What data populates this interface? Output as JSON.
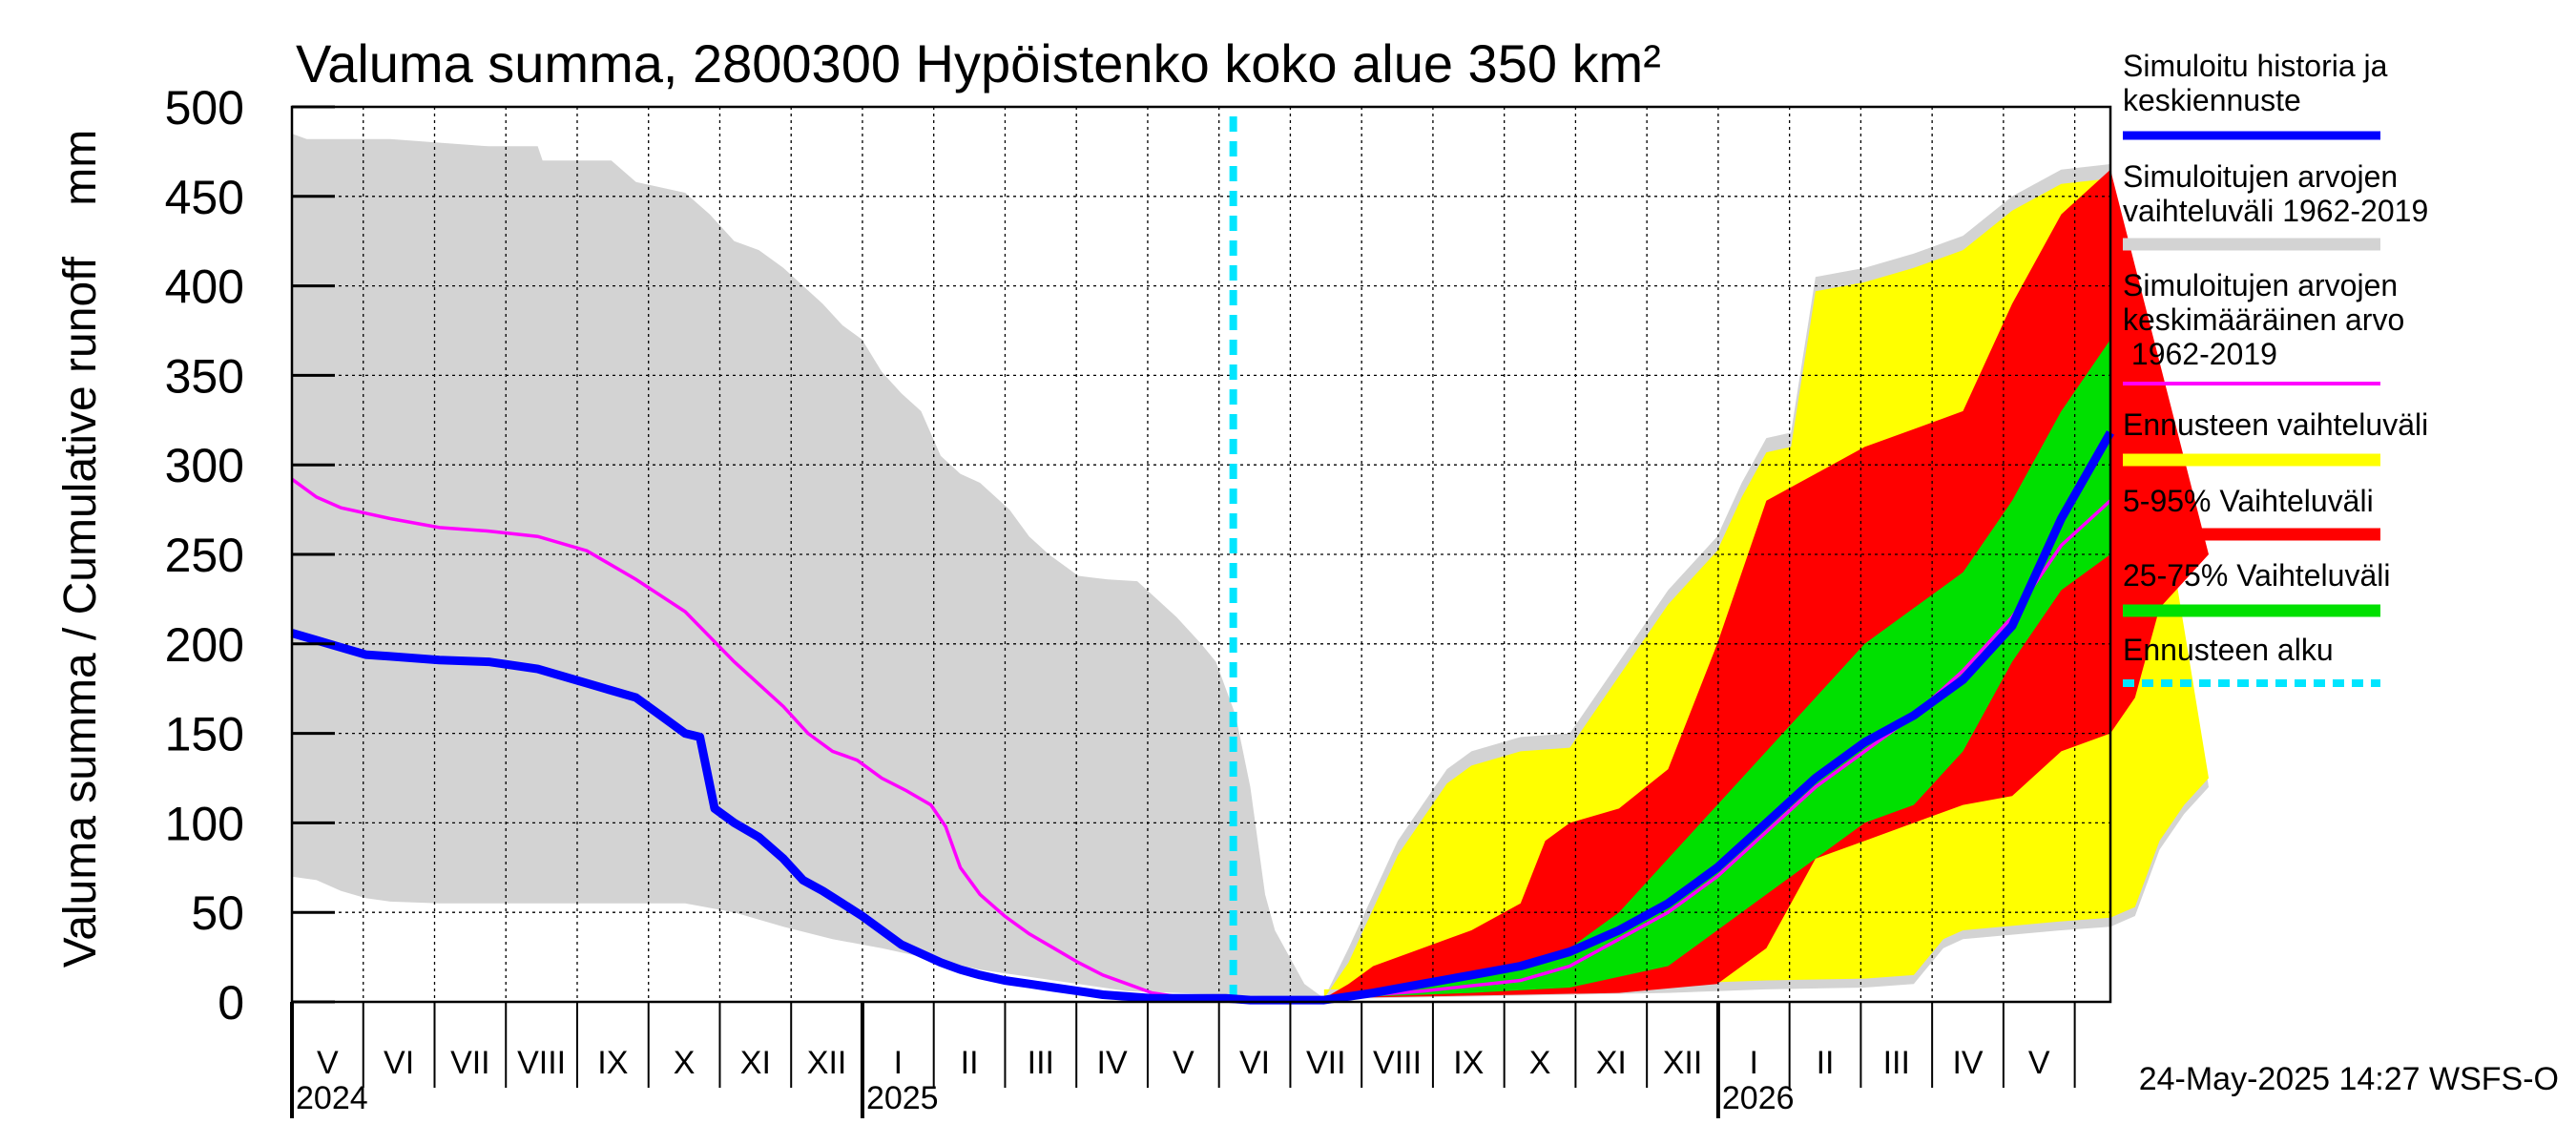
{
  "chart_data": {
    "type": "area",
    "title": "Valuma summa, 2800300 Hypöistenko koko alue 350 km²",
    "ylabel": "Valuma summa / Cumulative runoff    mm",
    "xlabel": "",
    "ylim": [
      0,
      500
    ],
    "xlim_months": [
      0,
      25.5
    ],
    "forecast_start_month": 13.2,
    "y_ticks": [
      0,
      50,
      100,
      150,
      200,
      250,
      300,
      350,
      400,
      450,
      500
    ],
    "x_month_labels": [
      {
        "label": "V",
        "m": 0
      },
      {
        "label": "VI",
        "m": 1
      },
      {
        "label": "VII",
        "m": 2
      },
      {
        "label": "VIII",
        "m": 3
      },
      {
        "label": "IX",
        "m": 4
      },
      {
        "label": "X",
        "m": 5
      },
      {
        "label": "XI",
        "m": 6
      },
      {
        "label": "XII",
        "m": 7
      },
      {
        "label": "I",
        "m": 8
      },
      {
        "label": "II",
        "m": 9
      },
      {
        "label": "III",
        "m": 10
      },
      {
        "label": "IV",
        "m": 11
      },
      {
        "label": "V",
        "m": 12
      },
      {
        "label": "VI",
        "m": 13
      },
      {
        "label": "VII",
        "m": 14
      },
      {
        "label": "VIII",
        "m": 15
      },
      {
        "label": "IX",
        "m": 16
      },
      {
        "label": "X",
        "m": 17
      },
      {
        "label": "XI",
        "m": 18
      },
      {
        "label": "XII",
        "m": 19
      },
      {
        "label": "I",
        "m": 20
      },
      {
        "label": "II",
        "m": 21
      },
      {
        "label": "III",
        "m": 22
      },
      {
        "label": "IV",
        "m": 23
      },
      {
        "label": "V",
        "m": 24
      }
    ],
    "year_labels": [
      {
        "label": "2024",
        "m": 0
      },
      {
        "label": "2025",
        "m": 8
      },
      {
        "label": "2026",
        "m": 20
      }
    ],
    "timestamp": "24-May-2025 14:27 WSFS-O",
    "legend": [
      {
        "label": "Simuloitu historia ja keskiennuste",
        "color": "#0000ff"
      },
      {
        "label": "Simuloitujen arvojen vaihteluväli 1962-2019",
        "color": "#d3d3d3"
      },
      {
        "label": "Simuloitujen arvojen keskimääräinen arvo 1962-2019",
        "color": "#ff00ff"
      },
      {
        "label": "Ennusteen vaihteluväli",
        "color": "#ffff00"
      },
      {
        "label": "5-95% Vaihteluväli",
        "color": "#ff0000"
      },
      {
        "label": "25-75% Vaihteluväli",
        "color": "#00e000"
      },
      {
        "label": "Ennusteen alku",
        "color": "#00e5ff"
      }
    ],
    "series": [
      {
        "name": "hist_range",
        "upper": [
          [
            0,
            485
          ],
          [
            0.3,
            482
          ],
          [
            2,
            482
          ],
          [
            4,
            478
          ],
          [
            5,
            478
          ],
          [
            5.1,
            470
          ],
          [
            6.5,
            470
          ],
          [
            7,
            458
          ],
          [
            8,
            452
          ],
          [
            8.5,
            440
          ],
          [
            9,
            425
          ],
          [
            9.5,
            420
          ],
          [
            10,
            410
          ],
          [
            10.4,
            400
          ],
          [
            10.8,
            390
          ],
          [
            11.2,
            378
          ],
          [
            11.6,
            370
          ],
          [
            12,
            352
          ],
          [
            12.4,
            340
          ],
          [
            12.8,
            330
          ],
          [
            13.2,
            305
          ],
          [
            13.6,
            295
          ],
          [
            14,
            290
          ],
          [
            14.6,
            275
          ],
          [
            15,
            260
          ],
          [
            15.4,
            250
          ],
          [
            16,
            238
          ],
          [
            16.6,
            236
          ],
          [
            17.2,
            235
          ],
          [
            17.6,
            225
          ],
          [
            18,
            215
          ],
          [
            18.5,
            200
          ],
          [
            18.8,
            190
          ],
          [
            19.2,
            160
          ],
          [
            19.5,
            120
          ],
          [
            19.8,
            60
          ],
          [
            20,
            40
          ],
          [
            20.3,
            25
          ],
          [
            20.6,
            10
          ],
          [
            21,
            2
          ]
        ],
        "lower": [
          [
            0,
            70
          ],
          [
            0.5,
            68
          ],
          [
            1,
            62
          ],
          [
            1.5,
            58
          ],
          [
            2,
            56
          ],
          [
            3,
            55
          ],
          [
            8,
            55
          ],
          [
            9,
            50
          ],
          [
            10,
            42
          ],
          [
            11,
            35
          ],
          [
            12,
            30
          ],
          [
            13,
            24
          ],
          [
            14,
            18
          ],
          [
            15,
            14
          ],
          [
            16,
            10
          ],
          [
            17,
            6
          ],
          [
            18,
            5
          ],
          [
            19,
            4
          ],
          [
            20,
            3
          ],
          [
            21,
            2
          ]
        ]
      },
      {
        "name": "ensemble_range",
        "upper": [
          [
            21,
            2
          ],
          [
            21.5,
            30
          ],
          [
            22,
            60
          ],
          [
            22.5,
            90
          ],
          [
            23,
            110
          ],
          [
            23.5,
            130
          ],
          [
            24,
            140
          ],
          [
            25,
            148
          ],
          [
            26,
            150
          ],
          [
            27,
            190
          ],
          [
            28,
            230
          ],
          [
            29,
            260
          ],
          [
            29.5,
            290
          ],
          [
            30,
            315
          ],
          [
            30.5,
            318
          ],
          [
            31,
            405
          ],
          [
            32,
            410
          ],
          [
            33,
            418
          ],
          [
            34,
            428
          ],
          [
            35,
            450
          ],
          [
            36,
            465
          ],
          [
            37,
            468
          ]
        ],
        "lower": [
          [
            21,
            2
          ],
          [
            22,
            2
          ],
          [
            24,
            3
          ],
          [
            26,
            4
          ],
          [
            28,
            5
          ],
          [
            30,
            7
          ],
          [
            32,
            8
          ],
          [
            33,
            10
          ],
          [
            33.6,
            30
          ],
          [
            34,
            35
          ],
          [
            36,
            40
          ],
          [
            37,
            42
          ],
          [
            37.5,
            48
          ],
          [
            38,
            85
          ],
          [
            38.5,
            105
          ],
          [
            39,
            120
          ]
        ]
      },
      {
        "name": "p5_95",
        "upper": [
          [
            21,
            2
          ],
          [
            21.5,
            10
          ],
          [
            22,
            20
          ],
          [
            23,
            30
          ],
          [
            24,
            40
          ],
          [
            25,
            55
          ],
          [
            25.5,
            90
          ],
          [
            26,
            100
          ],
          [
            27,
            108
          ],
          [
            28,
            130
          ],
          [
            29,
            200
          ],
          [
            30,
            280
          ],
          [
            31,
            295
          ],
          [
            32,
            310
          ],
          [
            33,
            320
          ],
          [
            34,
            330
          ],
          [
            35,
            390
          ],
          [
            36,
            440
          ],
          [
            37,
            465
          ]
        ],
        "lower": [
          [
            21,
            2
          ],
          [
            23,
            3
          ],
          [
            25,
            4
          ],
          [
            27,
            5
          ],
          [
            29,
            10
          ],
          [
            30,
            30
          ],
          [
            31,
            80
          ],
          [
            32,
            90
          ],
          [
            33,
            100
          ],
          [
            34,
            110
          ],
          [
            35,
            115
          ],
          [
            36,
            140
          ],
          [
            37,
            150
          ],
          [
            37.5,
            170
          ],
          [
            38,
            220
          ],
          [
            39,
            250
          ]
        ]
      },
      {
        "name": "p25_75",
        "upper": [
          [
            21,
            2
          ],
          [
            22,
            5
          ],
          [
            23,
            10
          ],
          [
            24,
            15
          ],
          [
            25,
            20
          ],
          [
            26,
            30
          ],
          [
            27,
            50
          ],
          [
            28,
            80
          ],
          [
            29,
            110
          ],
          [
            30,
            140
          ],
          [
            31,
            170
          ],
          [
            32,
            200
          ],
          [
            33,
            220
          ],
          [
            34,
            240
          ],
          [
            35,
            280
          ],
          [
            36,
            330
          ],
          [
            37,
            370
          ]
        ],
        "lower": [
          [
            21,
            2
          ],
          [
            22,
            3
          ],
          [
            24,
            5
          ],
          [
            26,
            8
          ],
          [
            28,
            20
          ],
          [
            29,
            40
          ],
          [
            30,
            60
          ],
          [
            31,
            80
          ],
          [
            32,
            100
          ],
          [
            33,
            110
          ],
          [
            34,
            140
          ],
          [
            35,
            190
          ],
          [
            36,
            230
          ],
          [
            37,
            250
          ]
        ]
      },
      {
        "name": "hist_mean",
        "points": [
          [
            0,
            292
          ],
          [
            0.5,
            282
          ],
          [
            1,
            276
          ],
          [
            2,
            270
          ],
          [
            3,
            265
          ],
          [
            4,
            263
          ],
          [
            5,
            260
          ],
          [
            6,
            252
          ],
          [
            7,
            236
          ],
          [
            8,
            218
          ],
          [
            9,
            190
          ],
          [
            10,
            165
          ],
          [
            10.5,
            150
          ],
          [
            11,
            140
          ],
          [
            11.5,
            135
          ],
          [
            12,
            125
          ],
          [
            12.5,
            118
          ],
          [
            13,
            110
          ],
          [
            13.3,
            98
          ],
          [
            13.6,
            75
          ],
          [
            14,
            60
          ],
          [
            14.5,
            48
          ],
          [
            15,
            38
          ],
          [
            15.5,
            30
          ],
          [
            16,
            22
          ],
          [
            16.5,
            15
          ],
          [
            17,
            10
          ],
          [
            17.5,
            5
          ],
          [
            18,
            3
          ],
          [
            18.5,
            2
          ],
          [
            21,
            2
          ],
          [
            22,
            4
          ],
          [
            23,
            6
          ],
          [
            24,
            9
          ],
          [
            25,
            12
          ],
          [
            26,
            20
          ],
          [
            27,
            35
          ],
          [
            28,
            50
          ],
          [
            29,
            70
          ],
          [
            30,
            95
          ],
          [
            31,
            120
          ],
          [
            32,
            140
          ],
          [
            33,
            160
          ],
          [
            34,
            185
          ],
          [
            35,
            215
          ],
          [
            36,
            255
          ],
          [
            37,
            280
          ]
        ]
      },
      {
        "name": "forecast",
        "points": [
          [
            0,
            206
          ],
          [
            0.5,
            202
          ],
          [
            1,
            198
          ],
          [
            1.5,
            194
          ],
          [
            2,
            193
          ],
          [
            3,
            191
          ],
          [
            4,
            190
          ],
          [
            5,
            186
          ],
          [
            6,
            178
          ],
          [
            7,
            170
          ],
          [
            7.5,
            160
          ],
          [
            8,
            150
          ],
          [
            8.3,
            148
          ],
          [
            8.6,
            108
          ],
          [
            9,
            100
          ],
          [
            9.5,
            92
          ],
          [
            10,
            80
          ],
          [
            10.4,
            68
          ],
          [
            10.8,
            62
          ],
          [
            11.2,
            55
          ],
          [
            11.6,
            48
          ],
          [
            12,
            40
          ],
          [
            12.4,
            32
          ],
          [
            12.8,
            27
          ],
          [
            13.2,
            22
          ],
          [
            13.6,
            18
          ],
          [
            14,
            15
          ],
          [
            14.5,
            12
          ],
          [
            15,
            10
          ],
          [
            15.5,
            8
          ],
          [
            16,
            6
          ],
          [
            16.5,
            4
          ],
          [
            17,
            3
          ],
          [
            17.5,
            2
          ],
          [
            18,
            2
          ],
          [
            18.5,
            2
          ],
          [
            19,
            2
          ],
          [
            19.5,
            1
          ],
          [
            20,
            1
          ],
          [
            20.5,
            1
          ],
          [
            21,
            1
          ],
          [
            22,
            5
          ],
          [
            23,
            10
          ],
          [
            24,
            15
          ],
          [
            25,
            20
          ],
          [
            26,
            28
          ],
          [
            27,
            40
          ],
          [
            28,
            55
          ],
          [
            29,
            75
          ],
          [
            30,
            100
          ],
          [
            31,
            125
          ],
          [
            32,
            145
          ],
          [
            33,
            160
          ],
          [
            34,
            180
          ],
          [
            35,
            210
          ],
          [
            36,
            270
          ],
          [
            37,
            318
          ]
        ]
      }
    ]
  }
}
